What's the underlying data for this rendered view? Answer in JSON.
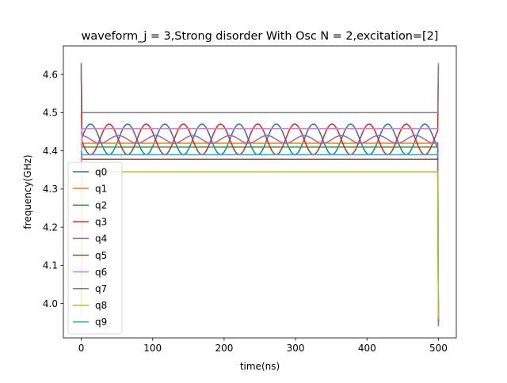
{
  "chart_data": {
    "type": "line",
    "title": "waveform_j = 3,Strong disorder With Osc N =  2,excitation=[2]",
    "xlabel": "time(ns)",
    "ylabel": "frequency(GHz)",
    "xlim": [
      -25,
      525
    ],
    "ylim": [
      3.91,
      4.675
    ],
    "xticks": [
      0,
      100,
      200,
      300,
      400,
      500
    ],
    "yticks": [
      4.0,
      4.1,
      4.2,
      4.3,
      4.4,
      4.5,
      4.6
    ],
    "xtick_labels": [
      "0",
      "100",
      "200",
      "300",
      "400",
      "500"
    ],
    "ytick_labels": [
      "4.0",
      "4.1",
      "4.2",
      "4.3",
      "4.4",
      "4.5",
      "4.6"
    ],
    "grid": false,
    "legend_position": "lower-left",
    "series": [
      {
        "name": "q0",
        "color": "#1f77b4",
        "base": 4.43,
        "amp": 0.04,
        "period": 52,
        "phase": 0,
        "start": 4.63,
        "end": 3.95
      },
      {
        "name": "q1",
        "color": "#ff7f0e",
        "base": 4.42,
        "amp": 0,
        "period": 52,
        "phase": 0,
        "start": 4.62,
        "end": 3.96
      },
      {
        "name": "q2",
        "color": "#2ca02c",
        "base": 4.41,
        "amp": 0,
        "period": 52,
        "phase": 0,
        "start": 4.61,
        "end": 3.95
      },
      {
        "name": "q3",
        "color": "#d62728",
        "base": 4.43,
        "amp": 0.04,
        "period": 52,
        "phase": 3.14159,
        "start": 4.6,
        "end": 4.62
      },
      {
        "name": "q4",
        "color": "#9467bd",
        "base": 4.43,
        "amp": 0.01,
        "period": 52,
        "phase": 1.5708,
        "start": 4.45,
        "end": 3.94
      },
      {
        "name": "q5",
        "color": "#8c564b",
        "base": 4.378,
        "amp": 0,
        "period": 52,
        "phase": 0,
        "start": 4.4,
        "end": 4.38
      },
      {
        "name": "q6",
        "color": "#e377c2",
        "base": 4.458,
        "amp": 0,
        "period": 52,
        "phase": 0,
        "start": 4.35,
        "end": 4.46
      },
      {
        "name": "q7",
        "color": "#7f7f7f",
        "base": 4.5,
        "amp": 0,
        "period": 52,
        "phase": 0,
        "start": 4.63,
        "end": 4.63
      },
      {
        "name": "q8",
        "color": "#bcbd22",
        "base": 4.345,
        "amp": 0,
        "period": 52,
        "phase": 0,
        "start": 3.97,
        "end": 3.96
      },
      {
        "name": "q9",
        "color": "#17becf",
        "base": 4.39,
        "amp": 0,
        "period": 52,
        "phase": 0,
        "start": 4.4,
        "end": 4.4
      }
    ]
  }
}
